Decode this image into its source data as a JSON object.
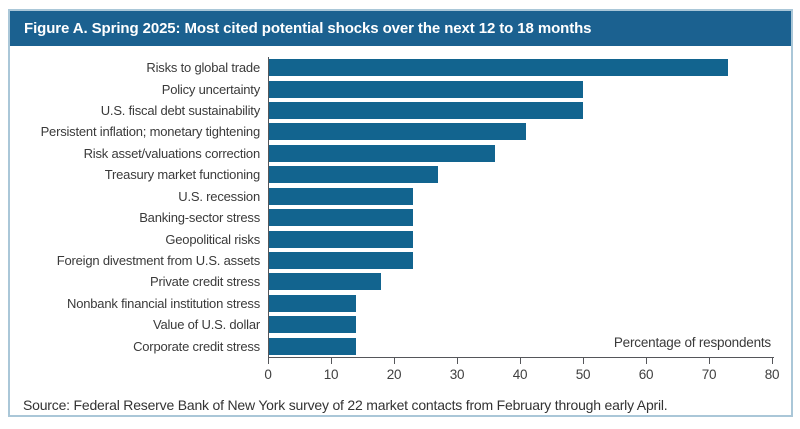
{
  "figure": {
    "title": "Figure A. Spring 2025: Most cited potential shocks over the next 12 to 18 months",
    "source": "Source: Federal Reserve Bank of New York survey of 22 market contacts from February through early April.",
    "axis_note": "Percentage of respondents"
  },
  "colors": {
    "header_bg": "#1b6190",
    "bar": "#12648f",
    "border": "#aac7d8",
    "axis": "#55565a",
    "text": "#3a3a3a"
  },
  "chart_data": {
    "type": "bar",
    "orientation": "horizontal",
    "title": "Figure A. Spring 2025: Most cited potential shocks over the next 12 to 18 months",
    "xlabel": "Percentage of respondents",
    "ylabel": "",
    "xlim": [
      0,
      80
    ],
    "xticks": [
      0,
      10,
      20,
      30,
      40,
      50,
      60,
      70,
      80
    ],
    "grid": false,
    "legend": false,
    "bar_color": "#12648f",
    "categories": [
      "Risks to global trade",
      "Policy uncertainty",
      "U.S. fiscal debt sustainability",
      "Persistent inflation; monetary tightening",
      "Risk asset/valuations correction",
      "Treasury market functioning",
      "U.S. recession",
      "Banking-sector stress",
      "Geopolitical risks",
      "Foreign divestment from U.S. assets",
      "Private credit stress",
      "Nonbank financial institution stress",
      "Value of U.S. dollar",
      "Corporate credit stress"
    ],
    "values": [
      73,
      50,
      50,
      41,
      36,
      27,
      23,
      23,
      23,
      23,
      18,
      14,
      14,
      14
    ]
  }
}
